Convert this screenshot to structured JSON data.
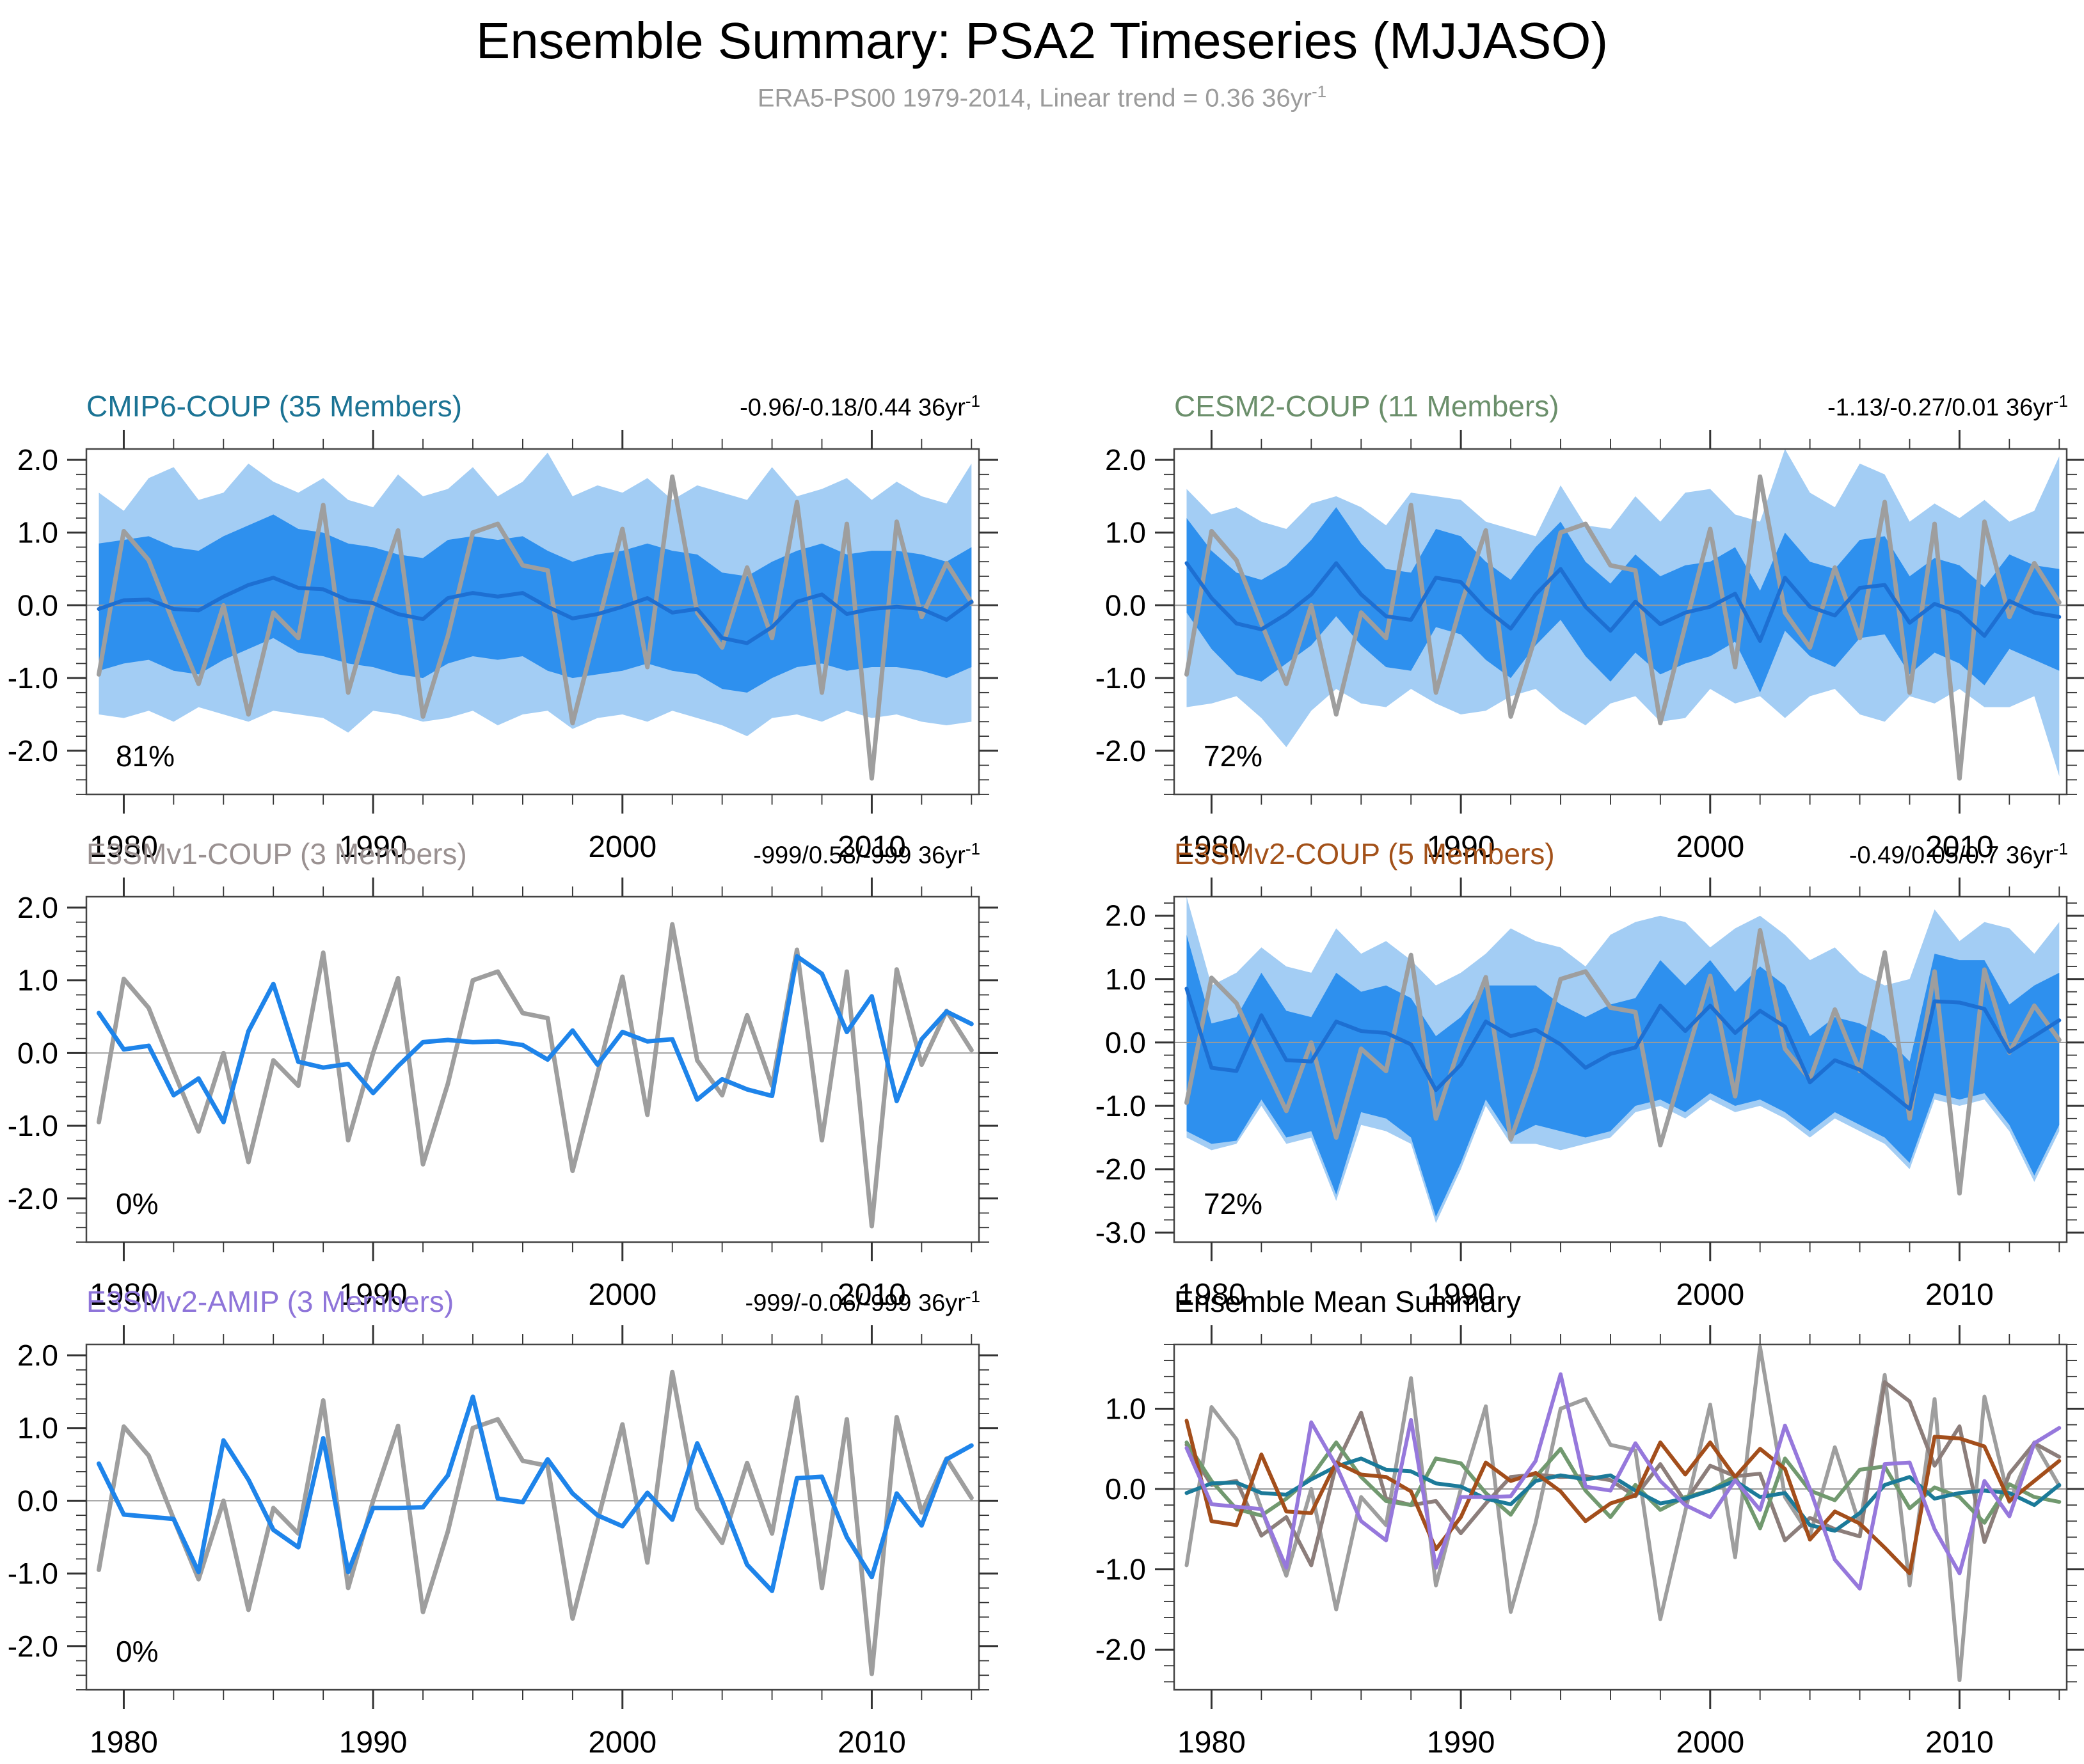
{
  "header": {
    "title": "Ensemble Summary: PSA2 Timeseries (MJJASO)",
    "subtitle_base": "ERA5-PS00 1979-2014, Linear trend = 0.36 36yr",
    "subtitle_sup": "-1"
  },
  "chart_data": {
    "type": "line",
    "xlabel": "",
    "ylabel": "",
    "grid": false,
    "years": [
      1979,
      1980,
      1981,
      1982,
      1983,
      1984,
      1985,
      1986,
      1987,
      1988,
      1989,
      1990,
      1991,
      1992,
      1993,
      1994,
      1995,
      1996,
      1997,
      1998,
      1999,
      2000,
      2001,
      2002,
      2003,
      2004,
      2005,
      2006,
      2007,
      2008,
      2009,
      2010,
      2011,
      2012,
      2013,
      2014
    ],
    "xlim": [
      1978.5,
      2014.3
    ],
    "xticks": [
      1980,
      1990,
      2000,
      2010
    ],
    "xtick_labels": [
      "1980",
      "1990",
      "2000",
      "2010"
    ],
    "xminor_step": 2,
    "yminor_step": 0.2,
    "values": {
      "era5": [
        -0.95,
        1.02,
        0.62,
        -0.25,
        -1.08,
        0.0,
        -1.5,
        -0.1,
        -0.45,
        1.38,
        -1.2,
        0.0,
        1.03,
        -1.53,
        -0.42,
        1.0,
        1.12,
        0.55,
        0.48,
        -1.62,
        -0.28,
        1.05,
        -0.85,
        1.77,
        -0.1,
        -0.58,
        0.52,
        -0.45,
        1.42,
        -1.2,
        1.12,
        -2.38,
        1.15,
        -0.16,
        0.58,
        0.04
      ],
      "cmip6_mean": [
        -0.05,
        0.07,
        0.08,
        -0.05,
        -0.07,
        0.12,
        0.28,
        0.38,
        0.24,
        0.22,
        0.07,
        0.03,
        -0.12,
        -0.19,
        0.1,
        0.17,
        0.12,
        0.17,
        -0.02,
        -0.18,
        -0.12,
        -0.02,
        0.1,
        -0.1,
        -0.05,
        -0.45,
        -0.52,
        -0.3,
        0.05,
        0.15,
        -0.12,
        -0.05,
        -0.02,
        -0.05,
        -0.2,
        0.05
      ],
      "cmip6_inner_hi": [
        0.85,
        0.9,
        0.95,
        0.8,
        0.75,
        0.95,
        1.1,
        1.25,
        1.05,
        1.0,
        0.85,
        0.8,
        0.7,
        0.65,
        0.9,
        0.95,
        0.9,
        0.95,
        0.75,
        0.6,
        0.7,
        0.75,
        0.85,
        0.75,
        0.7,
        0.45,
        0.4,
        0.6,
        0.75,
        0.85,
        0.7,
        0.75,
        0.75,
        0.7,
        0.6,
        0.8
      ],
      "cmip6_inner_lo": [
        -0.9,
        -0.8,
        -0.75,
        -0.9,
        -0.95,
        -0.75,
        -0.6,
        -0.45,
        -0.65,
        -0.7,
        -0.8,
        -0.85,
        -0.95,
        -1.0,
        -0.8,
        -0.7,
        -0.75,
        -0.7,
        -0.9,
        -1.0,
        -0.95,
        -0.9,
        -0.8,
        -0.9,
        -0.95,
        -1.15,
        -1.2,
        -1.0,
        -0.85,
        -0.8,
        -0.9,
        -0.85,
        -0.85,
        -0.9,
        -1.0,
        -0.85
      ],
      "cmip6_outer_hi": [
        1.55,
        1.3,
        1.75,
        1.9,
        1.45,
        1.55,
        1.95,
        1.7,
        1.55,
        1.75,
        1.45,
        1.35,
        1.8,
        1.5,
        1.6,
        1.9,
        1.5,
        1.7,
        2.1,
        1.5,
        1.65,
        1.55,
        1.75,
        1.45,
        1.65,
        1.55,
        1.45,
        1.9,
        1.5,
        1.6,
        1.75,
        1.45,
        1.7,
        1.5,
        1.4,
        1.95
      ],
      "cmip6_outer_lo": [
        -1.5,
        -1.55,
        -1.45,
        -1.6,
        -1.4,
        -1.5,
        -1.6,
        -1.45,
        -1.5,
        -1.55,
        -1.75,
        -1.45,
        -1.5,
        -1.6,
        -1.55,
        -1.45,
        -1.65,
        -1.5,
        -1.45,
        -1.7,
        -1.55,
        -1.5,
        -1.6,
        -1.45,
        -1.55,
        -1.65,
        -1.8,
        -1.55,
        -1.5,
        -1.6,
        -1.45,
        -1.55,
        -1.5,
        -1.6,
        -1.65,
        -1.6
      ],
      "cesm2_mean": [
        0.58,
        0.1,
        -0.25,
        -0.33,
        -0.12,
        0.15,
        0.58,
        0.15,
        -0.15,
        -0.2,
        0.38,
        0.32,
        -0.05,
        -0.32,
        0.15,
        0.5,
        -0.02,
        -0.35,
        0.05,
        -0.26,
        -0.1,
        -0.02,
        0.16,
        -0.49,
        0.38,
        -0.02,
        -0.14,
        0.24,
        0.28,
        -0.24,
        0.02,
        -0.1,
        -0.42,
        0.06,
        -0.1,
        -0.16
      ],
      "cesm2_inner_hi": [
        1.2,
        0.75,
        0.45,
        0.35,
        0.55,
        0.9,
        1.35,
        0.85,
        0.5,
        0.45,
        1.05,
        0.95,
        0.6,
        0.35,
        0.8,
        1.15,
        0.6,
        0.3,
        0.7,
        0.4,
        0.55,
        0.6,
        0.8,
        0.2,
        1.0,
        0.6,
        0.5,
        0.9,
        0.95,
        0.4,
        0.65,
        0.55,
        0.25,
        0.7,
        0.55,
        0.5
      ],
      "cesm2_inner_lo": [
        -0.1,
        -0.6,
        -0.95,
        -1.05,
        -0.8,
        -0.55,
        -0.15,
        -0.55,
        -0.85,
        -0.9,
        -0.3,
        -0.4,
        -0.75,
        -1.0,
        -0.55,
        -0.2,
        -0.7,
        -1.05,
        -0.65,
        -0.95,
        -0.8,
        -0.7,
        -0.5,
        -1.2,
        -0.35,
        -0.7,
        -0.85,
        -0.45,
        -0.4,
        -0.95,
        -0.65,
        -0.8,
        -1.1,
        -0.6,
        -0.75,
        -0.9
      ],
      "cesm2_outer_hi": [
        1.6,
        1.25,
        1.35,
        1.15,
        1.05,
        1.4,
        1.5,
        1.35,
        1.1,
        1.55,
        1.5,
        1.45,
        1.15,
        1.05,
        0.95,
        1.65,
        1.1,
        1.05,
        1.5,
        1.15,
        1.55,
        1.6,
        1.25,
        1.15,
        2.15,
        1.55,
        1.35,
        1.95,
        1.8,
        1.15,
        1.4,
        1.2,
        1.45,
        1.15,
        1.3,
        2.05
      ],
      "cesm2_outer_lo": [
        -1.4,
        -1.35,
        -1.25,
        -1.55,
        -1.95,
        -1.45,
        -1.15,
        -1.35,
        -1.4,
        -1.15,
        -1.35,
        -1.5,
        -1.45,
        -1.25,
        -1.15,
        -1.45,
        -1.65,
        -1.35,
        -1.25,
        -1.6,
        -1.55,
        -1.15,
        -1.35,
        -1.25,
        -1.55,
        -1.25,
        -1.15,
        -1.5,
        -1.6,
        -1.25,
        -1.35,
        -1.15,
        -1.4,
        -1.4,
        -1.25,
        -2.35
      ],
      "e3smv1_mean": [
        0.55,
        0.05,
        0.1,
        -0.58,
        -0.35,
        -0.95,
        0.3,
        0.95,
        -0.12,
        -0.2,
        -0.15,
        -0.55,
        -0.18,
        0.15,
        0.18,
        0.15,
        0.16,
        0.11,
        -0.09,
        0.31,
        -0.16,
        0.29,
        0.16,
        0.19,
        -0.64,
        -0.36,
        -0.5,
        -0.59,
        1.33,
        1.09,
        0.29,
        0.78,
        -0.66,
        0.19,
        0.57,
        0.4
      ],
      "e3smv2c_mean": [
        0.85,
        -0.4,
        -0.45,
        0.43,
        -0.28,
        -0.3,
        0.33,
        0.18,
        0.15,
        -0.03,
        -0.75,
        -0.35,
        0.33,
        0.1,
        0.2,
        -0.03,
        -0.4,
        -0.18,
        -0.08,
        0.58,
        0.18,
        0.58,
        0.15,
        0.5,
        0.25,
        -0.63,
        -0.28,
        -0.43,
        -0.73,
        -1.05,
        0.65,
        0.63,
        0.53,
        -0.15,
        0.1,
        0.35
      ],
      "e3smv2c_inner_hi": [
        1.7,
        0.3,
        0.4,
        1.1,
        0.5,
        0.4,
        1.1,
        0.8,
        0.9,
        0.7,
        0.1,
        0.4,
        0.9,
        0.9,
        0.9,
        0.6,
        0.4,
        0.6,
        0.7,
        1.3,
        0.9,
        1.3,
        0.8,
        1.2,
        0.9,
        0.1,
        0.4,
        0.3,
        0.1,
        -0.3,
        1.4,
        1.3,
        1.3,
        0.6,
        0.9,
        1.1
      ],
      "e3smv2c_inner_lo": [
        -1.4,
        -1.6,
        -1.55,
        -0.9,
        -1.5,
        -1.4,
        -2.4,
        -1.1,
        -1.2,
        -1.5,
        -2.75,
        -1.9,
        -0.9,
        -1.5,
        -1.3,
        -1.4,
        -1.5,
        -1.4,
        -1.0,
        -0.9,
        -1.1,
        -0.8,
        -1.0,
        -0.9,
        -1.1,
        -1.4,
        -1.1,
        -1.3,
        -1.5,
        -1.9,
        -0.8,
        -0.9,
        -0.8,
        -1.3,
        -2.1,
        -1.3
      ],
      "e3smv2c_outer_hi": [
        2.3,
        0.9,
        1.1,
        1.5,
        1.2,
        1.1,
        1.8,
        1.4,
        1.6,
        1.3,
        0.9,
        1.1,
        1.4,
        1.8,
        1.6,
        1.5,
        1.2,
        1.7,
        1.9,
        2.0,
        1.9,
        1.5,
        1.8,
        2.0,
        1.7,
        1.3,
        1.5,
        1.1,
        0.9,
        1.0,
        2.1,
        1.6,
        1.9,
        1.8,
        1.4,
        1.9
      ],
      "e3smv2c_outer_lo": [
        -1.5,
        -1.7,
        -1.6,
        -1.0,
        -1.6,
        -1.5,
        -2.5,
        -1.3,
        -1.4,
        -1.6,
        -2.85,
        -2.0,
        -1.0,
        -1.6,
        -1.6,
        -1.7,
        -1.6,
        -1.5,
        -1.1,
        -1.0,
        -1.2,
        -0.9,
        -1.1,
        -1.0,
        -1.2,
        -1.5,
        -1.2,
        -1.4,
        -1.6,
        -2.0,
        -0.9,
        -1.0,
        -0.9,
        -1.4,
        -2.2,
        -1.4
      ],
      "e3smv2a_mean": [
        0.51,
        -0.19,
        -0.22,
        -0.25,
        -0.98,
        0.83,
        0.29,
        -0.4,
        -0.64,
        0.86,
        -0.98,
        -0.1,
        -0.1,
        -0.09,
        0.35,
        1.43,
        0.03,
        -0.02,
        0.57,
        0.1,
        -0.2,
        -0.35,
        0.11,
        -0.26,
        0.79,
        0.0,
        -0.88,
        -1.24,
        0.31,
        0.33,
        -0.5,
        -1.05,
        0.1,
        -0.34,
        0.57,
        0.76
      ]
    },
    "panels": [
      {
        "id": "cmip6-coup",
        "title": "CMIP6-COUP (35 Members)",
        "title_color": "#1B7394",
        "trend_base": "-0.96/-0.18/0.44 36yr",
        "trend_sup": "-1",
        "pct_label": "81%",
        "ylim": [
          -2.6,
          2.15
        ],
        "yticks": [
          -2,
          -1,
          0,
          1,
          2
        ],
        "ytick_labels": [
          "-2.0",
          "-1.0",
          "0.0",
          "1.0",
          "2.0"
        ],
        "series": [
          {
            "kind": "band",
            "name": "cmip6-member-range-band",
            "color": "#A3CDF4",
            "hi": "cmip6_outer_hi",
            "lo": "cmip6_outer_lo"
          },
          {
            "kind": "band",
            "name": "cmip6-member-spread-band",
            "color": "#2E90EE",
            "hi": "cmip6_inner_hi",
            "lo": "cmip6_inner_lo"
          },
          {
            "kind": "line",
            "name": "era5-observation-line",
            "color": "#9E9E9E",
            "width": 7,
            "ref": "era5"
          },
          {
            "kind": "line",
            "name": "cmip6-ensemble-mean-line",
            "color": "#1D6FD2",
            "width": 6,
            "ref": "cmip6_mean"
          }
        ]
      },
      {
        "id": "cesm2-coup",
        "title": "CESM2-COUP (11 Members)",
        "title_color": "#6B8F6B",
        "trend_base": "-1.13/-0.27/0.01 36yr",
        "trend_sup": "-1",
        "pct_label": "72%",
        "ylim": [
          -2.6,
          2.15
        ],
        "yticks": [
          -2,
          -1,
          0,
          1,
          2
        ],
        "ytick_labels": [
          "-2.0",
          "-1.0",
          "0.0",
          "1.0",
          "2.0"
        ],
        "series": [
          {
            "kind": "band",
            "name": "cesm2-member-range-band",
            "color": "#A3CDF4",
            "hi": "cesm2_outer_hi",
            "lo": "cesm2_outer_lo"
          },
          {
            "kind": "band",
            "name": "cesm2-member-spread-band",
            "color": "#2E90EE",
            "hi": "cesm2_inner_hi",
            "lo": "cesm2_inner_lo"
          },
          {
            "kind": "line",
            "name": "era5-observation-line",
            "color": "#9E9E9E",
            "width": 7,
            "ref": "era5"
          },
          {
            "kind": "line",
            "name": "cesm2-ensemble-mean-line",
            "color": "#1D6FD2",
            "width": 6,
            "ref": "cesm2_mean"
          }
        ]
      },
      {
        "id": "e3smv1-coup",
        "title": "E3SMv1-COUP (3 Members)",
        "title_color": "#9A9191",
        "trend_base": "-999/0.58/-999 36yr",
        "trend_sup": "-1",
        "pct_label": "0%",
        "ylim": [
          -2.6,
          2.15
        ],
        "yticks": [
          -2,
          -1,
          0,
          1,
          2
        ],
        "ytick_labels": [
          "-2.0",
          "-1.0",
          "0.0",
          "1.0",
          "2.0"
        ],
        "series": [
          {
            "kind": "line",
            "name": "era5-observation-line",
            "color": "#9E9E9E",
            "width": 7,
            "ref": "era5"
          },
          {
            "kind": "line",
            "name": "e3smv1-ensemble-mean-line",
            "color": "#1E84EA",
            "width": 7,
            "ref": "e3smv1_mean"
          }
        ]
      },
      {
        "id": "e3smv2-coup",
        "title": "E3SMv2-COUP (5 Members)",
        "title_color": "#A35119",
        "trend_base": "-0.49/0.05/0.7 36yr",
        "trend_sup": "-1",
        "pct_label": "72%",
        "ylim": [
          -3.15,
          2.3
        ],
        "yticks": [
          -3,
          -2,
          -1,
          0,
          1,
          2
        ],
        "ytick_labels": [
          "-3.0",
          "-2.0",
          "-1.0",
          "0.0",
          "1.0",
          "2.0"
        ],
        "series": [
          {
            "kind": "band",
            "name": "e3smv2-member-range-band",
            "color": "#A3CDF4",
            "hi": "e3smv2c_outer_hi",
            "lo": "e3smv2c_outer_lo"
          },
          {
            "kind": "band",
            "name": "e3smv2-member-spread-band",
            "color": "#2E90EE",
            "hi": "e3smv2c_inner_hi",
            "lo": "e3smv2c_inner_lo"
          },
          {
            "kind": "line",
            "name": "era5-observation-line",
            "color": "#9E9E9E",
            "width": 7,
            "ref": "era5"
          },
          {
            "kind": "line",
            "name": "e3smv2-coup-ensemble-mean-line",
            "color": "#1D6FD2",
            "width": 6,
            "ref": "e3smv2c_mean"
          }
        ]
      },
      {
        "id": "e3smv2-amip",
        "title": "E3SMv2-AMIP (3 Members)",
        "title_color": "#8E74D9",
        "trend_base": "-999/-0.06/-999 36yr",
        "trend_sup": "-1",
        "pct_label": "0%",
        "ylim": [
          -2.6,
          2.15
        ],
        "yticks": [
          -2,
          -1,
          0,
          1,
          2
        ],
        "ytick_labels": [
          "-2.0",
          "-1.0",
          "0.0",
          "1.0",
          "2.0"
        ],
        "series": [
          {
            "kind": "line",
            "name": "era5-observation-line",
            "color": "#9E9E9E",
            "width": 7,
            "ref": "era5"
          },
          {
            "kind": "line",
            "name": "e3smv2-amip-ensemble-mean-line",
            "color": "#1E84EA",
            "width": 7,
            "ref": "e3smv2a_mean"
          }
        ]
      },
      {
        "id": "ensemble-mean-summary",
        "title": "Ensemble Mean Summary",
        "title_color": "#000000",
        "pct_label": "",
        "ylim": [
          -2.5,
          1.8
        ],
        "yticks": [
          -2,
          -1,
          0,
          1
        ],
        "ytick_labels": [
          "-2.0",
          "-1.0",
          "0.0",
          "1.0"
        ],
        "series": [
          {
            "kind": "line",
            "name": "era5-observation-line",
            "color": "#9E9E9E",
            "width": 6,
            "ref": "era5"
          },
          {
            "kind": "line",
            "name": "e3smv1-mean-line",
            "color": "#8C7E7B",
            "width": 6,
            "ref": "e3smv1_mean"
          },
          {
            "kind": "line",
            "name": "cesm2-mean-line",
            "color": "#71996F",
            "width": 6,
            "ref": "cesm2_mean"
          },
          {
            "kind": "line",
            "name": "cmip6-mean-line",
            "color": "#1B7A99",
            "width": 6,
            "ref": "cmip6_mean"
          },
          {
            "kind": "line",
            "name": "e3smv2-coup-mean-line",
            "color": "#A34E1B",
            "width": 6,
            "ref": "e3smv2c_mean"
          },
          {
            "kind": "line",
            "name": "e3smv2-amip-mean-line",
            "color": "#9678DC",
            "width": 6,
            "ref": "e3smv2a_mean"
          }
        ]
      }
    ]
  }
}
